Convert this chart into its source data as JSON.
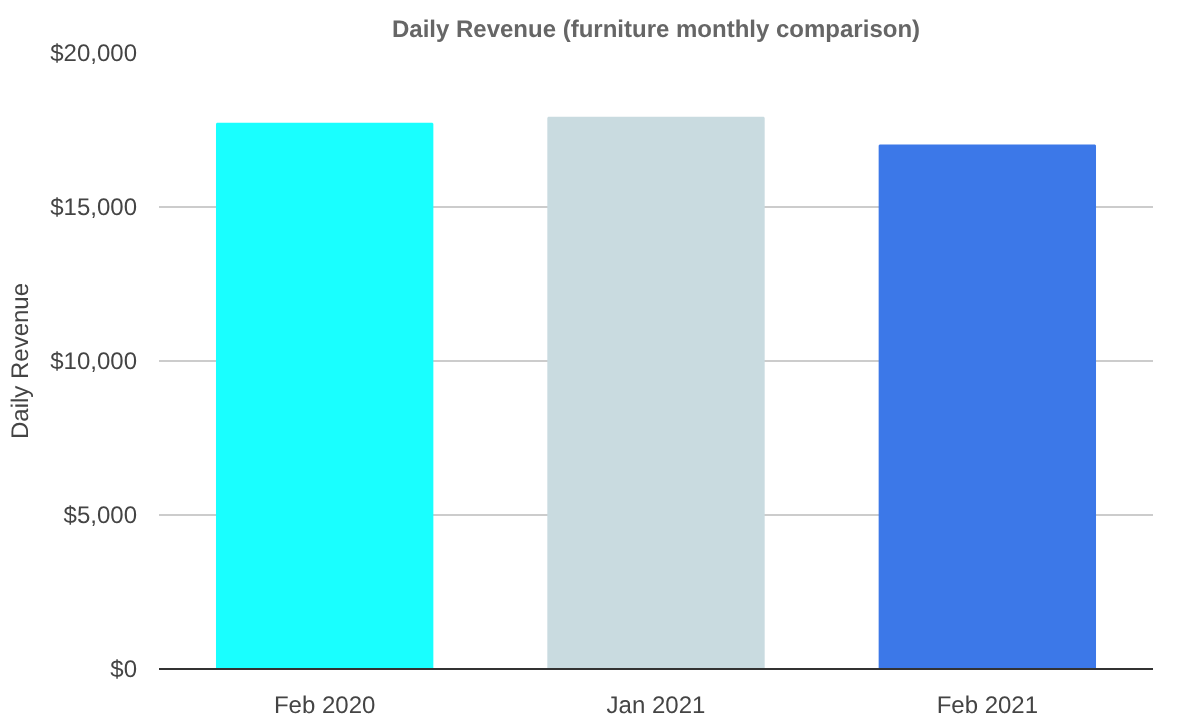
{
  "chart_data": {
    "type": "bar",
    "title": "Daily Revenue (furniture monthly comparison)",
    "ylabel": "Daily Revenue",
    "categories": [
      "Feb 2020",
      "Jan 2021",
      "Feb 2021"
    ],
    "values": [
      17700,
      17900,
      17000
    ],
    "colors": [
      "#19ffff",
      "#c9dbe0",
      "#3c78e8"
    ],
    "ylim": [
      0,
      20000
    ],
    "yticks": [
      {
        "value": 0,
        "label": "$0"
      },
      {
        "value": 5000,
        "label": "$5,000"
      },
      {
        "value": 10000,
        "label": "$10,000"
      },
      {
        "value": 15000,
        "label": "$15,000"
      },
      {
        "value": 20000,
        "label": "$20,000"
      }
    ],
    "grid": "y"
  }
}
